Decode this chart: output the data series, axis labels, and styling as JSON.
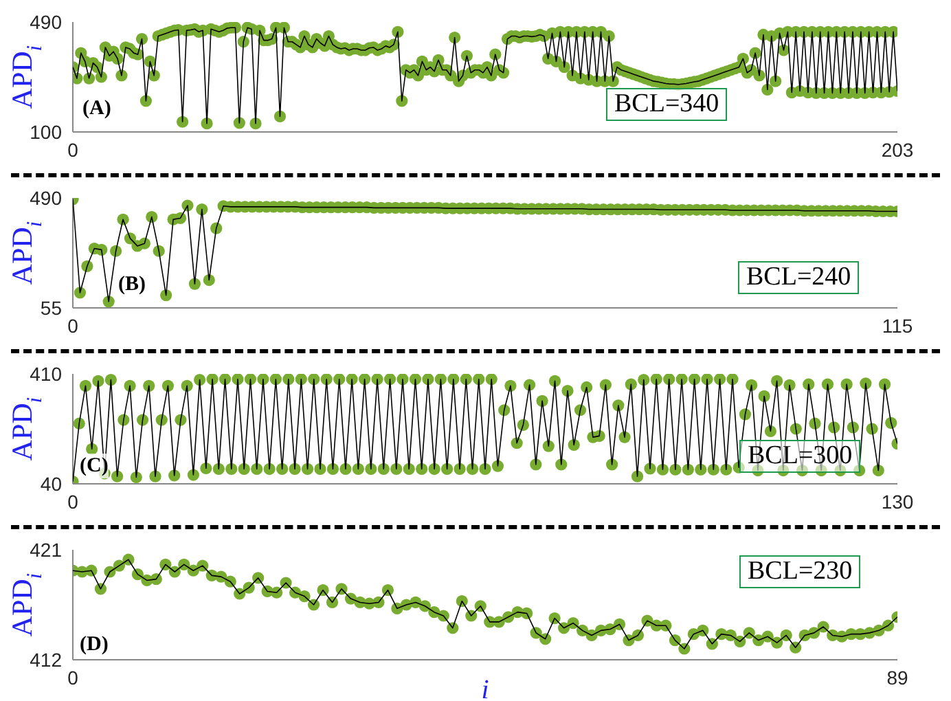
{
  "chart_data": [
    {
      "type": "line",
      "ylabel": "APD$_{i}$",
      "annotations": [
        "(A)",
        "BCL=340"
      ],
      "xlim": [
        0,
        203
      ],
      "xticks": [
        0,
        203
      ],
      "ylim": [
        100,
        490
      ],
      "yticks": [
        100,
        490
      ],
      "marker": "circle",
      "line_style": "solid",
      "series": [
        {
          "color": "#77ac30",
          "x": [
            0,
            1,
            2,
            3,
            4,
            5,
            6,
            7,
            8,
            9,
            10,
            11,
            12,
            13,
            14,
            15,
            16,
            17,
            18,
            19,
            20,
            21,
            22,
            23,
            24,
            25,
            26,
            27,
            28,
            29,
            30,
            31,
            32,
            33,
            34,
            35,
            36,
            37,
            38,
            39,
            40,
            41,
            42,
            43,
            44,
            45,
            46,
            47,
            48,
            49,
            50,
            51,
            52,
            53,
            54,
            55,
            56,
            57,
            58,
            59,
            60,
            61,
            62,
            63,
            64,
            65,
            66,
            67,
            68,
            69,
            70,
            71,
            72,
            73,
            74,
            75,
            76,
            77,
            78,
            79,
            80,
            81,
            82,
            83,
            84,
            85,
            86,
            87,
            88,
            89,
            90,
            91,
            92,
            93,
            94,
            95,
            96,
            97,
            98,
            99,
            100,
            101,
            102,
            103,
            104,
            105,
            106,
            107,
            108,
            109,
            110,
            111,
            112,
            113,
            114,
            115,
            116,
            117,
            118,
            119,
            120,
            121,
            122,
            123,
            124,
            125,
            126,
            127,
            128,
            129,
            130,
            131,
            132,
            133,
            134,
            135,
            136,
            137,
            138,
            139,
            140,
            141,
            142,
            143,
            144,
            145,
            146,
            147,
            148,
            149,
            150,
            151,
            152,
            153,
            154,
            155,
            156,
            157,
            158,
            159,
            160,
            161,
            162,
            163,
            164,
            165,
            166,
            167,
            168,
            169,
            170,
            171,
            172,
            173,
            174,
            175,
            176,
            177,
            178,
            179,
            180,
            181,
            182,
            183,
            184,
            185,
            186,
            187,
            188,
            189,
            190,
            191,
            192,
            193,
            194,
            195,
            196,
            197,
            198,
            199,
            200,
            201,
            202,
            203
          ],
          "values": [
            330,
            290,
            380,
            350,
            290,
            345,
            330,
            295,
            400,
            370,
            385,
            360,
            300,
            400,
            395,
            380,
            375,
            430,
            210,
            350,
            300,
            440,
            445,
            450,
            455,
            460,
            462,
            136,
            460,
            462,
            465,
            455,
            460,
            130,
            465,
            460,
            455,
            460,
            468,
            470,
            470,
            132,
            420,
            470,
            465,
            130,
            460,
            425,
            425,
            430,
            470,
            155,
            470,
            420,
            420,
            410,
            400,
            440,
            410,
            400,
            430,
            415,
            405,
            440,
            410,
            400,
            395,
            398,
            390,
            395,
            395,
            390,
            390,
            398,
            400,
            390,
            395,
            405,
            400,
            410,
            455,
            210,
            320,
            310,
            320,
            300,
            350,
            320,
            330,
            315,
            355,
            320,
            320,
            300,
            435,
            280,
            300,
            370,
            310,
            320,
            320,
            310,
            330,
            300,
            375,
            320,
            310,
            430,
            440,
            440,
            435,
            440,
            440,
            438,
            440,
            445,
            440,
            360,
            450,
            350,
            455,
            330,
            455,
            300,
            455,
            290,
            455,
            285,
            455,
            280,
            455,
            280,
            440,
            280,
            330,
            320,
            315,
            310,
            305,
            300,
            295,
            290,
            285,
            280,
            278,
            275,
            272,
            270,
            270,
            268,
            270,
            272,
            275,
            278,
            280,
            285,
            290,
            295,
            300,
            305,
            310,
            315,
            320,
            325,
            330,
            360,
            310,
            320,
            380,
            300,
            445,
            250,
            440,
            280,
            450,
            390,
            455,
            240,
            455,
            245,
            455,
            240,
            455,
            238,
            455,
            238,
            455,
            238,
            455,
            238,
            455,
            238,
            455,
            238,
            455,
            238,
            455,
            240,
            455,
            240,
            455,
            242,
            455,
            245
          ]
        }
      ]
    },
    {
      "type": "line",
      "ylabel": "APD$_{i}$",
      "annotations": [
        "(B)",
        "BCL=240"
      ],
      "xlim": [
        0,
        115
      ],
      "xticks": [
        0,
        115
      ],
      "ylim": [
        55,
        490
      ],
      "yticks": [
        55,
        490
      ],
      "marker": "circle",
      "line_style": "solid",
      "series": [
        {
          "color": "#77ac30",
          "x": [
            0,
            1,
            2,
            3,
            4,
            5,
            6,
            7,
            8,
            9,
            10,
            11,
            12,
            13,
            14,
            15,
            16,
            17,
            18,
            19,
            20,
            21,
            22,
            23,
            24,
            25,
            26,
            27,
            28,
            29,
            30,
            31,
            32,
            33,
            34,
            35,
            36,
            37,
            38,
            39,
            40,
            41,
            42,
            43,
            44,
            45,
            46,
            47,
            48,
            49,
            50,
            51,
            52,
            53,
            54,
            55,
            56,
            57,
            58,
            59,
            60,
            61,
            62,
            63,
            64,
            65,
            66,
            67,
            68,
            69,
            70,
            71,
            72,
            73,
            74,
            75,
            76,
            77,
            78,
            79,
            80,
            81,
            82,
            83,
            84,
            85,
            86,
            87,
            88,
            89,
            90,
            91,
            92,
            93,
            94,
            95,
            96,
            97,
            98,
            99,
            100,
            101,
            102,
            103,
            104,
            105,
            106,
            107,
            108,
            109,
            110,
            111,
            112,
            113,
            114,
            115
          ],
          "values": [
            485,
            115,
            220,
            290,
            285,
            80,
            280,
            405,
            330,
            300,
            310,
            415,
            280,
            105,
            405,
            410,
            460,
            150,
            445,
            165,
            370,
            458,
            455,
            455,
            455,
            455,
            455,
            455,
            455,
            455,
            455,
            455,
            453,
            453,
            453,
            453,
            453,
            453,
            453,
            453,
            453,
            453,
            451,
            451,
            451,
            451,
            451,
            451,
            451,
            451,
            451,
            451,
            449,
            449,
            449,
            449,
            449,
            449,
            449,
            449,
            449,
            449,
            447,
            447,
            447,
            447,
            447,
            447,
            447,
            447,
            447,
            447,
            445,
            445,
            445,
            445,
            445,
            445,
            445,
            445,
            445,
            445,
            443,
            443,
            443,
            443,
            443,
            443,
            443,
            443,
            443,
            443,
            441,
            441,
            441,
            441,
            441,
            441,
            441,
            441,
            441,
            441,
            439,
            439,
            439,
            439,
            439,
            439,
            439,
            439,
            439,
            439,
            437,
            437,
            437,
            437
          ]
        }
      ]
    },
    {
      "type": "line",
      "ylabel": "APD$_{i}$",
      "annotations": [
        "(C)",
        "BCL=300"
      ],
      "xlim": [
        0,
        130
      ],
      "xticks": [
        0,
        130
      ],
      "ylim": [
        40,
        410
      ],
      "yticks": [
        40,
        410
      ],
      "marker": "circle",
      "line_style": "solid",
      "series": [
        {
          "color": "#77ac30",
          "x": [
            0,
            1,
            2,
            3,
            4,
            5,
            6,
            7,
            8,
            9,
            10,
            11,
            12,
            13,
            14,
            15,
            16,
            17,
            18,
            19,
            20,
            21,
            22,
            23,
            24,
            25,
            26,
            27,
            28,
            29,
            30,
            31,
            32,
            33,
            34,
            35,
            36,
            37,
            38,
            39,
            40,
            41,
            42,
            43,
            44,
            45,
            46,
            47,
            48,
            49,
            50,
            51,
            52,
            53,
            54,
            55,
            56,
            57,
            58,
            59,
            60,
            61,
            62,
            63,
            64,
            65,
            66,
            67,
            68,
            69,
            70,
            71,
            72,
            73,
            74,
            75,
            76,
            77,
            78,
            79,
            80,
            81,
            82,
            83,
            84,
            85,
            86,
            87,
            88,
            89,
            90,
            91,
            92,
            93,
            94,
            95,
            96,
            97,
            98,
            99,
            100,
            101,
            102,
            103,
            104,
            105,
            106,
            107,
            108,
            109,
            110,
            111,
            112,
            113,
            114,
            115,
            116,
            117,
            118,
            119,
            120,
            121,
            122,
            123,
            124,
            125,
            126,
            127,
            128,
            129,
            130
          ],
          "values": [
            48,
            243,
            370,
            157,
            386,
            75,
            390,
            65,
            255,
            370,
            62,
            255,
            370,
            65,
            255,
            370,
            68,
            255,
            370,
            70,
            390,
            92,
            392,
            90,
            392,
            90,
            392,
            90,
            392,
            90,
            392,
            90,
            392,
            90,
            392,
            90,
            392,
            90,
            392,
            90,
            392,
            90,
            392,
            90,
            392,
            90,
            392,
            90,
            392,
            90,
            392,
            90,
            392,
            90,
            392,
            90,
            392,
            90,
            392,
            90,
            392,
            90,
            392,
            90,
            392,
            90,
            392,
            100,
            288,
            370,
            177,
            238,
            373,
            105,
            319,
            167,
            386,
            105,
            353,
            171,
            288,
            365,
            197,
            201,
            373,
            105,
            304,
            197,
            375,
            65,
            390,
            91,
            392,
            88,
            392,
            88,
            392,
            88,
            392,
            88,
            392,
            88,
            392,
            88,
            392,
            95,
            274,
            372,
            85,
            335,
            217,
            386,
            85,
            372,
            225,
            85,
            375,
            243,
            85,
            375,
            230,
            85,
            375,
            230,
            85,
            378,
            225,
            85,
            375,
            245,
            175
          ]
        }
      ]
    },
    {
      "type": "line",
      "ylabel": "APD$_{i}$",
      "xlabel": "i",
      "annotations": [
        "(D)",
        "BCL=230"
      ],
      "xlim": [
        0,
        89
      ],
      "xticks": [
        0,
        89
      ],
      "ylim": [
        412,
        421
      ],
      "yticks": [
        412,
        421
      ],
      "marker": "circle",
      "line_style": "solid",
      "series": [
        {
          "color": "#77ac30",
          "x": [
            0,
            1,
            2,
            3,
            4,
            5,
            6,
            7,
            8,
            9,
            10,
            11,
            12,
            13,
            14,
            15,
            16,
            17,
            18,
            19,
            20,
            21,
            22,
            23,
            24,
            25,
            26,
            27,
            28,
            29,
            30,
            31,
            32,
            33,
            34,
            35,
            36,
            37,
            38,
            39,
            40,
            41,
            42,
            43,
            44,
            45,
            46,
            47,
            48,
            49,
            50,
            51,
            52,
            53,
            54,
            55,
            56,
            57,
            58,
            59,
            60,
            61,
            62,
            63,
            64,
            65,
            66,
            67,
            68,
            69,
            70,
            71,
            72,
            73,
            74,
            75,
            76,
            77,
            78,
            79,
            80,
            81,
            82,
            83,
            84,
            85,
            86,
            87,
            88,
            89
          ],
          "values": [
            419.3,
            419.2,
            419.3,
            417.8,
            419.2,
            419.7,
            420.2,
            419.0,
            418.5,
            418.6,
            419.8,
            419.2,
            419.8,
            419.3,
            419.7,
            418.9,
            418.8,
            418.4,
            417.4,
            417.9,
            418.7,
            417.6,
            417.5,
            418.3,
            417.5,
            417.2,
            416.5,
            417.7,
            416.7,
            417.8,
            417.0,
            416.7,
            416.6,
            416.7,
            417.7,
            416.2,
            416.5,
            416.7,
            416.4,
            415.9,
            415.6,
            414.6,
            416.8,
            415.6,
            416.4,
            415.1,
            415.1,
            415.5,
            415.9,
            415.8,
            414.2,
            413.7,
            415.4,
            414.6,
            415.0,
            414.4,
            414.0,
            414.4,
            414.5,
            414.9,
            413.6,
            414.0,
            415.2,
            414.8,
            414.8,
            413.6,
            412.9,
            414.1,
            414.4,
            413.3,
            414.1,
            414.0,
            413.5,
            414.2,
            413.6,
            413.9,
            413.4,
            414.0,
            413.0,
            414.0,
            414.2,
            414.7,
            414.0,
            413.9,
            414.1,
            414.1,
            414.2,
            414.4,
            414.8,
            415.5
          ]
        }
      ]
    }
  ]
}
